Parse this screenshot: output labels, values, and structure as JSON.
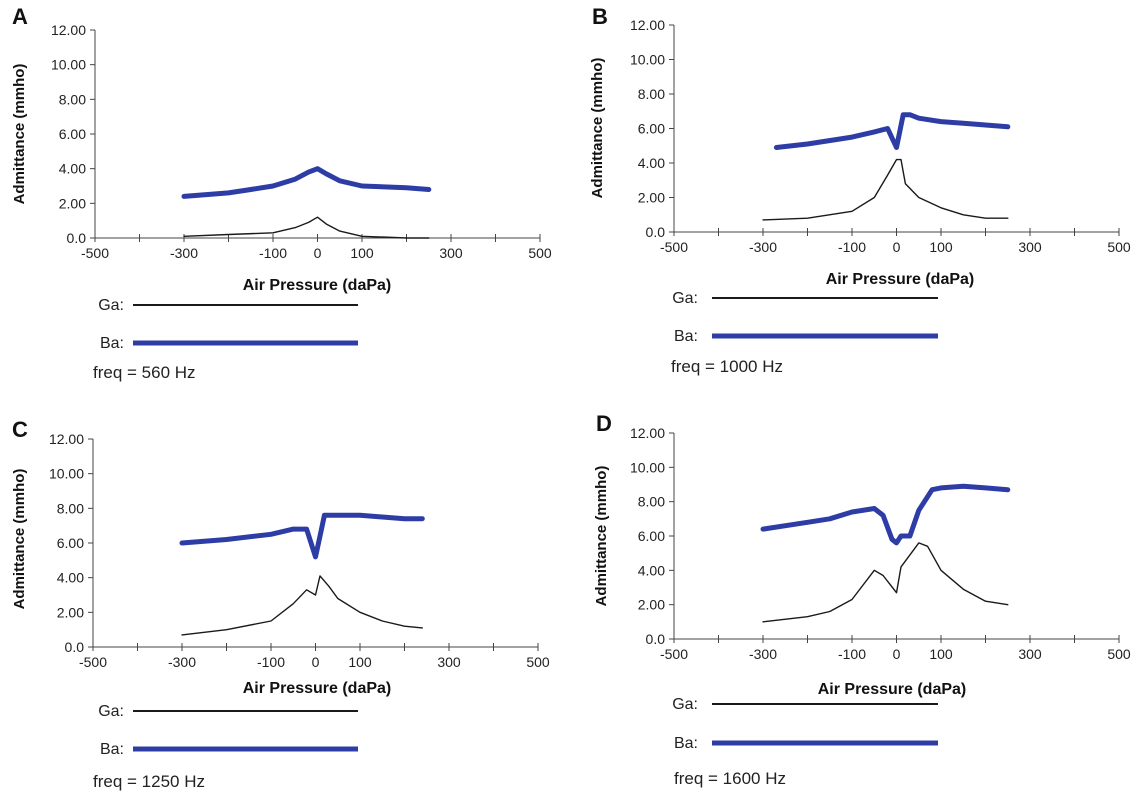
{
  "colors": {
    "ga": "#1a1a1a",
    "ba": "#2e3da6",
    "axis": "#444444"
  },
  "chart_data": [
    {
      "type": "line",
      "panel": "A",
      "xlabel": "Air Pressure (daPa)",
      "ylabel": "Admittance (mmho)",
      "xlim": [
        -500,
        500
      ],
      "ylim": [
        0,
        12
      ],
      "xticks": [
        -500,
        -300,
        -100,
        0,
        100,
        300,
        500
      ],
      "xtick_labels": [
        "-500",
        "-300",
        "-100",
        "0",
        "100",
        "300",
        "500"
      ],
      "yticks": [
        0,
        2,
        4,
        6,
        8,
        10,
        12
      ],
      "ytick_labels": [
        "0.0",
        "2.00",
        "4.00",
        "6.00",
        "8.00",
        "10.00",
        "12.00"
      ],
      "legend": {
        "ga_label": "Ga:",
        "ba_label": "Ba:"
      },
      "freq_label": "freq = 560 Hz",
      "series": [
        {
          "name": "Ga",
          "x": [
            -300,
            -200,
            -100,
            -50,
            -20,
            0,
            20,
            50,
            100,
            150,
            200,
            250
          ],
          "values": [
            0.1,
            0.2,
            0.3,
            0.6,
            0.9,
            1.2,
            0.8,
            0.4,
            0.1,
            0.05,
            0.0,
            0.0
          ]
        },
        {
          "name": "Ba",
          "x": [
            -300,
            -200,
            -150,
            -100,
            -50,
            -20,
            0,
            20,
            50,
            100,
            200,
            250
          ],
          "values": [
            2.4,
            2.6,
            2.8,
            3.0,
            3.4,
            3.8,
            4.0,
            3.7,
            3.3,
            3.0,
            2.9,
            2.8
          ]
        }
      ]
    },
    {
      "type": "line",
      "panel": "B",
      "xlabel": "Air Pressure (daPa)",
      "ylabel": "Admittance (mmho)",
      "xlim": [
        -500,
        500
      ],
      "ylim": [
        0,
        12
      ],
      "xticks": [
        -500,
        -300,
        -100,
        0,
        100,
        300,
        500
      ],
      "xtick_labels": [
        "-500",
        "-300",
        "-100",
        "0",
        "100",
        "300",
        "500"
      ],
      "yticks": [
        0,
        2,
        4,
        6,
        8,
        10,
        12
      ],
      "ytick_labels": [
        "0.0",
        "2.00",
        "4.00",
        "6.00",
        "8.00",
        "10.00",
        "12.00"
      ],
      "legend": {
        "ga_label": "Ga:",
        "ba_label": "Ba:"
      },
      "freq_label": "freq = 1000 Hz",
      "series": [
        {
          "name": "Ga",
          "x": [
            -300,
            -200,
            -100,
            -50,
            -20,
            0,
            10,
            20,
            50,
            100,
            150,
            200,
            250
          ],
          "values": [
            0.7,
            0.8,
            1.2,
            2.0,
            3.3,
            4.2,
            4.2,
            2.8,
            2.0,
            1.4,
            1.0,
            0.8,
            0.8
          ]
        },
        {
          "name": "Ba",
          "x": [
            -270,
            -200,
            -100,
            -50,
            -20,
            0,
            15,
            30,
            50,
            100,
            150,
            200,
            250
          ],
          "values": [
            4.9,
            5.1,
            5.5,
            5.8,
            6.0,
            4.9,
            6.8,
            6.8,
            6.6,
            6.4,
            6.3,
            6.2,
            6.1
          ]
        }
      ]
    },
    {
      "type": "line",
      "panel": "C",
      "xlabel": "Air Pressure (daPa)",
      "ylabel": "Admittance (mmho)",
      "xlim": [
        -500,
        500
      ],
      "ylim": [
        0,
        12
      ],
      "xticks": [
        -500,
        -300,
        -100,
        0,
        100,
        300,
        500
      ],
      "xtick_labels": [
        "-500",
        "-300",
        "-100",
        "0",
        "100",
        "300",
        "500"
      ],
      "yticks": [
        0,
        2,
        4,
        6,
        8,
        10,
        12
      ],
      "ytick_labels": [
        "0.0",
        "2.00",
        "4.00",
        "6.00",
        "8.00",
        "10.00",
        "12.00"
      ],
      "legend": {
        "ga_label": "Ga:",
        "ba_label": "Ba:"
      },
      "freq_label": "freq = 1250 Hz",
      "series": [
        {
          "name": "Ga",
          "x": [
            -300,
            -200,
            -100,
            -50,
            -20,
            0,
            10,
            30,
            50,
            100,
            150,
            200,
            240
          ],
          "values": [
            0.7,
            1.0,
            1.5,
            2.5,
            3.3,
            3.0,
            4.1,
            3.5,
            2.8,
            2.0,
            1.5,
            1.2,
            1.1
          ]
        },
        {
          "name": "Ba",
          "x": [
            -300,
            -200,
            -100,
            -50,
            -20,
            0,
            10,
            20,
            40,
            100,
            150,
            200,
            240
          ],
          "values": [
            6.0,
            6.2,
            6.5,
            6.8,
            6.8,
            5.2,
            6.4,
            7.6,
            7.6,
            7.6,
            7.5,
            7.4,
            7.4
          ]
        }
      ]
    },
    {
      "type": "line",
      "panel": "D",
      "xlabel": "Air Pressure (daPa)",
      "ylabel": "Admittance (mmho)",
      "xlim": [
        -500,
        500
      ],
      "ylim": [
        0,
        12
      ],
      "xticks": [
        -500,
        -300,
        -100,
        0,
        100,
        300,
        500
      ],
      "xtick_labels": [
        "-500",
        "-300",
        "-100",
        "0",
        "100",
        "300",
        "500"
      ],
      "yticks": [
        0,
        2,
        4,
        6,
        8,
        10,
        12
      ],
      "ytick_labels": [
        "0.0",
        "2.00",
        "4.00",
        "6.00",
        "8.00",
        "10.00",
        "12.00"
      ],
      "legend": {
        "ga_label": "Ga:",
        "ba_label": "Ba:"
      },
      "freq_label": "freq = 1600 Hz",
      "series": [
        {
          "name": "Ga",
          "x": [
            -300,
            -200,
            -150,
            -100,
            -50,
            -30,
            0,
            10,
            50,
            70,
            100,
            150,
            200,
            250
          ],
          "values": [
            1.0,
            1.3,
            1.6,
            2.3,
            4.0,
            3.7,
            2.7,
            4.2,
            5.6,
            5.4,
            4.0,
            2.9,
            2.2,
            2.0
          ]
        },
        {
          "name": "Ba",
          "x": [
            -300,
            -200,
            -150,
            -100,
            -50,
            -30,
            -10,
            0,
            10,
            30,
            50,
            80,
            100,
            150,
            200,
            250
          ],
          "values": [
            6.4,
            6.8,
            7.0,
            7.4,
            7.6,
            7.2,
            5.8,
            5.6,
            6.0,
            6.0,
            7.5,
            8.7,
            8.8,
            8.9,
            8.8,
            8.7
          ]
        }
      ]
    }
  ]
}
